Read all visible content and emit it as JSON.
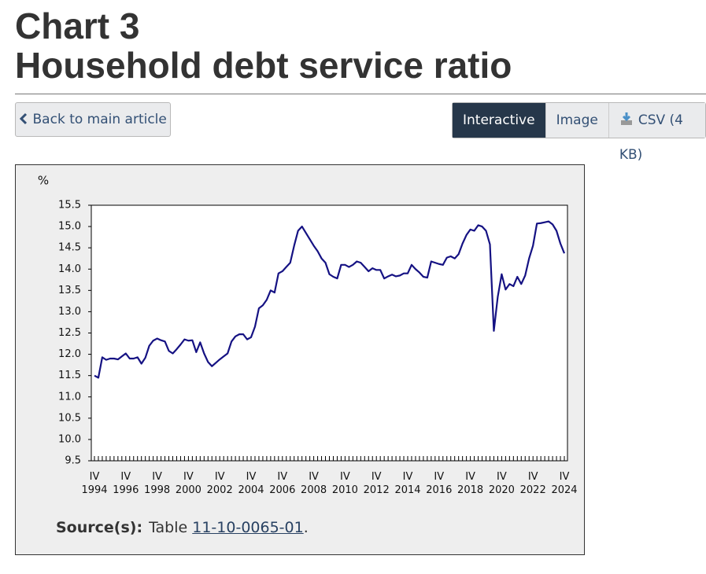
{
  "page": {
    "chart_number": "Chart 3",
    "title": "Household debt service ratio",
    "back_button": "Back to main article",
    "tabs": [
      "Interactive",
      "Image",
      "CSV (4 KB)"
    ],
    "source_label": "Source(s):",
    "source_prefix": "Table",
    "source_link": "11-10-0065-01",
    "source_suffix": "."
  },
  "chart_data": {
    "type": "line",
    "ylabel": "%",
    "color": "#151283",
    "ylim": [
      9.5,
      15.5
    ],
    "yticks": [
      9.5,
      {
        "value": 10,
        "label": "10.0"
      },
      10.5,
      {
        "value": 11,
        "label": "11.0"
      },
      11.5,
      {
        "value": 12,
        "label": "12.0"
      },
      12.5,
      {
        "value": 13,
        "label": "13.0"
      },
      13.5,
      {
        "value": 14,
        "label": "14.0"
      },
      14.5,
      {
        "value": 15,
        "label": "15.0"
      },
      15.5
    ],
    "categories": [
      "IV\n1994",
      null,
      null,
      null,
      null,
      null,
      null,
      null,
      "IV\n1996",
      null,
      null,
      null,
      null,
      null,
      null,
      null,
      "IV\n1998",
      null,
      null,
      null,
      null,
      null,
      null,
      null,
      "IV\n2000",
      null,
      null,
      null,
      null,
      null,
      null,
      null,
      "IV\n2002",
      null,
      null,
      null,
      null,
      null,
      null,
      null,
      "IV\n2004",
      null,
      null,
      null,
      null,
      null,
      null,
      null,
      "IV\n2006",
      null,
      null,
      null,
      null,
      null,
      null,
      null,
      "IV\n2008",
      null,
      null,
      null,
      null,
      null,
      null,
      null,
      "IV\n2010",
      null,
      null,
      null,
      null,
      null,
      null,
      null,
      "IV\n2012",
      null,
      null,
      null,
      null,
      null,
      null,
      null,
      "IV\n2014",
      null,
      null,
      null,
      null,
      null,
      null,
      null,
      "IV\n2016",
      null,
      null,
      null,
      null,
      null,
      null,
      null,
      "IV\n2018",
      null,
      null,
      null,
      null,
      null,
      null,
      null,
      "IV\n2020",
      null,
      null,
      null,
      null,
      null,
      null,
      null,
      "IV\n2022",
      null,
      null,
      null,
      null,
      null,
      null,
      null,
      "IV\n2024"
    ],
    "values": [
      11.5,
      11.45,
      11.93,
      11.87,
      11.9,
      11.9,
      11.88,
      11.95,
      12.02,
      11.9,
      11.9,
      11.93,
      11.78,
      11.92,
      12.2,
      12.32,
      12.37,
      12.33,
      12.3,
      12.08,
      12.02,
      12.12,
      12.23,
      12.35,
      12.32,
      12.33,
      12.05,
      12.28,
      12.02,
      11.82,
      11.72,
      11.8,
      11.88,
      11.95,
      12.02,
      12.3,
      12.42,
      12.47,
      12.47,
      12.35,
      12.4,
      12.65,
      13.08,
      13.15,
      13.28,
      13.5,
      13.45,
      13.9,
      13.95,
      14.05,
      14.15,
      14.55,
      14.9,
      15.0,
      14.85,
      14.7,
      14.55,
      14.42,
      14.25,
      14.15,
      13.88,
      13.82,
      13.78,
      14.1,
      14.1,
      14.05,
      14.1,
      14.18,
      14.15,
      14.05,
      13.95,
      14.02,
      13.98,
      13.98,
      13.78,
      13.83,
      13.87,
      13.83,
      13.85,
      13.9,
      13.9,
      14.1,
      14.0,
      13.92,
      13.82,
      13.8,
      14.18,
      14.15,
      14.12,
      14.1,
      14.27,
      14.3,
      14.25,
      14.35,
      14.6,
      14.8,
      14.93,
      14.9,
      15.03,
      15.0,
      14.9,
      14.58,
      12.55,
      13.35,
      13.88,
      13.52,
      13.65,
      13.6,
      13.82,
      13.65,
      13.85,
      14.25,
      14.55,
      15.07,
      15.08,
      15.1,
      15.12,
      15.05,
      14.9,
      14.6,
      14.37
    ]
  }
}
